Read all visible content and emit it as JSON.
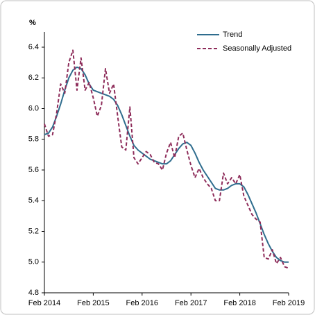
{
  "chart_data": {
    "type": "line",
    "y_label": "%",
    "categories": [
      "Feb 2014",
      null,
      null,
      null,
      null,
      null,
      null,
      null,
      null,
      null,
      null,
      null,
      "Feb 2015",
      null,
      null,
      null,
      null,
      null,
      null,
      null,
      null,
      null,
      null,
      null,
      "Feb 2016",
      null,
      null,
      null,
      null,
      null,
      null,
      null,
      null,
      null,
      null,
      null,
      "Feb 2017",
      null,
      null,
      null,
      null,
      null,
      null,
      null,
      null,
      null,
      null,
      null,
      "Feb 2018",
      null,
      null,
      null,
      null,
      null,
      null,
      null,
      null,
      null,
      null,
      null,
      "Feb 2019"
    ],
    "series": [
      {
        "name": "Trend",
        "color": "#2f6d8e",
        "dashed": false,
        "values": [
          5.83,
          5.84,
          5.88,
          5.95,
          6.03,
          6.12,
          6.2,
          6.25,
          6.27,
          6.26,
          6.22,
          6.16,
          6.12,
          6.11,
          6.1,
          6.09,
          6.08,
          6.06,
          6.02,
          5.96,
          5.89,
          5.82,
          5.76,
          5.73,
          5.71,
          5.69,
          5.67,
          5.66,
          5.65,
          5.64,
          5.64,
          5.66,
          5.7,
          5.74,
          5.77,
          5.78,
          5.76,
          5.71,
          5.65,
          5.6,
          5.56,
          5.52,
          5.48,
          5.47,
          5.47,
          5.48,
          5.5,
          5.51,
          5.51,
          5.49,
          5.44,
          5.38,
          5.32,
          5.25,
          5.18,
          5.12,
          5.07,
          5.03,
          5.01,
          5.0,
          5.0
        ]
      },
      {
        "name": "Seasonally Adjusted",
        "color": "#8e2c5a",
        "dashed": true,
        "values": [
          5.9,
          5.82,
          5.83,
          5.97,
          6.16,
          6.1,
          6.3,
          6.38,
          6.12,
          6.33,
          6.12,
          6.17,
          6.07,
          5.95,
          6.02,
          6.26,
          6.1,
          6.16,
          5.95,
          5.75,
          5.73,
          6.01,
          5.68,
          5.64,
          5.68,
          5.72,
          5.7,
          5.65,
          5.64,
          5.6,
          5.71,
          5.78,
          5.68,
          5.82,
          5.84,
          5.73,
          5.63,
          5.55,
          5.61,
          5.55,
          5.51,
          5.48,
          5.4,
          5.4,
          5.58,
          5.51,
          5.55,
          5.51,
          5.57,
          5.43,
          5.37,
          5.31,
          5.28,
          5.26,
          5.03,
          5.02,
          5.08,
          4.99,
          5.03,
          4.97,
          4.96
        ]
      }
    ],
    "ylim": [
      4.8,
      6.4
    ],
    "yticks": [
      4.8,
      {
        "value": 5,
        "label": "5.0"
      },
      5.2,
      5.4,
      5.6,
      5.8,
      {
        "value": 6,
        "label": "6.0"
      },
      6.2,
      6.4
    ],
    "grid": false,
    "legend": "top-right"
  }
}
